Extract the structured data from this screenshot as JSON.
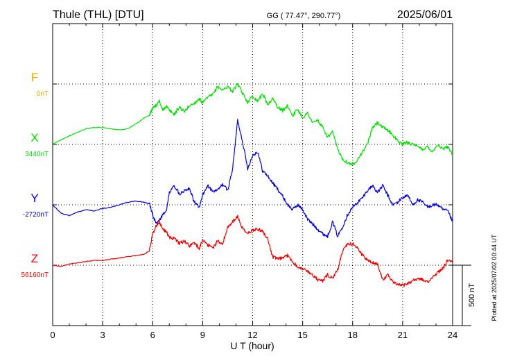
{
  "header": {
    "station": "Thule (THL)  [DTU]",
    "coords": "GG ( 77.47°, 290.77°)",
    "date": "2025/06/01"
  },
  "footer": {
    "plotted": "Plotted at 2025/07/02 00:44 UT"
  },
  "chart_data": {
    "type": "line",
    "xlabel": "U T (hour)",
    "x_ticks": [
      0,
      3,
      6,
      9,
      12,
      15,
      18,
      21,
      24
    ],
    "xlim": [
      0,
      24
    ],
    "scale_bar": "500 nT",
    "grid": true,
    "series": [
      {
        "name": "F",
        "baseline_label": "0nT",
        "color": "#f0a800",
        "x": [],
        "values": []
      },
      {
        "name": "X",
        "baseline_label": "3440nT",
        "color": "#00e000",
        "x": [
          0,
          0.5,
          1,
          1.5,
          2,
          2.5,
          3,
          3.5,
          4,
          4.5,
          5,
          5.5,
          5.8,
          6,
          6.2,
          6.4,
          6.6,
          6.8,
          7,
          7.3,
          7.6,
          7.9,
          8.2,
          8.5,
          8.8,
          9,
          9.3,
          9.6,
          9.9,
          10.2,
          10.5,
          10.8,
          11.1,
          11.4,
          11.7,
          12,
          12.3,
          12.6,
          12.9,
          13.2,
          13.5,
          13.8,
          14.1,
          14.4,
          14.7,
          15,
          15.3,
          15.6,
          15.9,
          16.2,
          16.5,
          16.8,
          17.1,
          17.4,
          17.7,
          18,
          18.3,
          18.6,
          18.9,
          19.2,
          19.5,
          19.8,
          20.1,
          20.4,
          20.7,
          21,
          21.3,
          21.6,
          21.9,
          22.2,
          22.5,
          22.8,
          23.1,
          23.4,
          23.7,
          24
        ],
        "values": [
          3440,
          3480,
          3510,
          3540,
          3570,
          3580,
          3580,
          3570,
          3560,
          3570,
          3610,
          3660,
          3680,
          3740,
          3760,
          3800,
          3720,
          3760,
          3720,
          3690,
          3750,
          3710,
          3760,
          3780,
          3820,
          3780,
          3830,
          3850,
          3920,
          3890,
          3920,
          3880,
          3940,
          3860,
          3790,
          3840,
          3800,
          3860,
          3770,
          3820,
          3750,
          3720,
          3760,
          3680,
          3730,
          3660,
          3700,
          3620,
          3640,
          3580,
          3500,
          3540,
          3400,
          3320,
          3290,
          3270,
          3320,
          3380,
          3450,
          3580,
          3620,
          3580,
          3560,
          3520,
          3470,
          3440,
          3460,
          3440,
          3420,
          3400,
          3420,
          3380,
          3440,
          3400,
          3420,
          3360
        ]
      },
      {
        "name": "Y",
        "baseline_label": "-2720nT",
        "color": "#0000dd",
        "x": [
          0,
          0.5,
          1,
          1.5,
          2,
          2.5,
          3,
          3.5,
          4,
          4.5,
          5,
          5.5,
          5.8,
          6,
          6.2,
          6.4,
          6.6,
          6.8,
          7,
          7.3,
          7.6,
          7.9,
          8.2,
          8.5,
          8.8,
          9,
          9.3,
          9.6,
          9.9,
          10.2,
          10.5,
          10.8,
          11.1,
          11.4,
          11.7,
          12,
          12.3,
          12.6,
          12.9,
          13.2,
          13.5,
          13.8,
          14.1,
          14.4,
          14.7,
          15,
          15.3,
          15.6,
          15.9,
          16.2,
          16.5,
          16.8,
          17.1,
          17.4,
          17.7,
          18,
          18.3,
          18.6,
          18.9,
          19.2,
          19.5,
          19.8,
          20.1,
          20.4,
          20.7,
          21,
          21.3,
          21.6,
          21.9,
          22.2,
          22.5,
          22.8,
          23.1,
          23.4,
          23.7,
          24
        ],
        "values": [
          -2720,
          -2790,
          -2810,
          -2780,
          -2760,
          -2770,
          -2750,
          -2740,
          -2720,
          -2700,
          -2690,
          -2700,
          -2710,
          -2800,
          -2880,
          -2850,
          -2800,
          -2780,
          -2620,
          -2560,
          -2630,
          -2600,
          -2580,
          -2700,
          -2740,
          -2640,
          -2560,
          -2610,
          -2600,
          -2550,
          -2600,
          -2420,
          -2020,
          -2200,
          -2420,
          -2310,
          -2280,
          -2440,
          -2480,
          -2540,
          -2590,
          -2650,
          -2720,
          -2760,
          -2720,
          -2760,
          -2840,
          -2880,
          -2920,
          -2960,
          -2980,
          -2860,
          -2980,
          -2900,
          -2800,
          -2740,
          -2700,
          -2660,
          -2600,
          -2560,
          -2620,
          -2560,
          -2640,
          -2720,
          -2700,
          -2660,
          -2640,
          -2720,
          -2680,
          -2700,
          -2740,
          -2720,
          -2720,
          -2760,
          -2770,
          -2860
        ]
      },
      {
        "name": "Z",
        "baseline_label": "56160nT",
        "color": "#ee0000",
        "x": [
          0,
          0.5,
          1,
          1.5,
          2,
          2.5,
          3,
          3.5,
          4,
          4.5,
          5,
          5.5,
          5.8,
          6,
          6.2,
          6.4,
          6.6,
          6.8,
          7,
          7.3,
          7.6,
          7.9,
          8.2,
          8.5,
          8.8,
          9,
          9.3,
          9.6,
          9.9,
          10.2,
          10.5,
          10.8,
          11.1,
          11.4,
          11.7,
          12,
          12.3,
          12.6,
          12.9,
          13.2,
          13.5,
          13.8,
          14.1,
          14.4,
          14.7,
          15,
          15.3,
          15.6,
          15.9,
          16.2,
          16.5,
          16.8,
          17.1,
          17.4,
          17.7,
          18,
          18.3,
          18.6,
          18.9,
          19.2,
          19.5,
          19.8,
          20.1,
          20.4,
          20.7,
          21,
          21.3,
          21.6,
          21.9,
          22.2,
          22.5,
          22.8,
          23.1,
          23.4,
          23.7,
          24
        ],
        "values": [
          56160,
          56150,
          56170,
          56180,
          56190,
          56200,
          56200,
          56210,
          56220,
          56230,
          56240,
          56250,
          56280,
          56420,
          56480,
          56520,
          56460,
          56440,
          56390,
          56380,
          56340,
          56360,
          56320,
          56340,
          56300,
          56370,
          56330,
          56300,
          56360,
          56340,
          56470,
          56520,
          56560,
          56460,
          56420,
          56450,
          56460,
          56440,
          56380,
          56230,
          56210,
          56220,
          56240,
          56190,
          56150,
          56130,
          56110,
          56080,
          56040,
          56030,
          56080,
          56050,
          56120,
          56280,
          56330,
          56340,
          56300,
          56240,
          56200,
          56180,
          56170,
          56040,
          56080,
          56020,
          56000,
          55990,
          56010,
          56030,
          56050,
          56040,
          56020,
          56060,
          56100,
          56130,
          56200,
          56180
        ]
      }
    ]
  }
}
